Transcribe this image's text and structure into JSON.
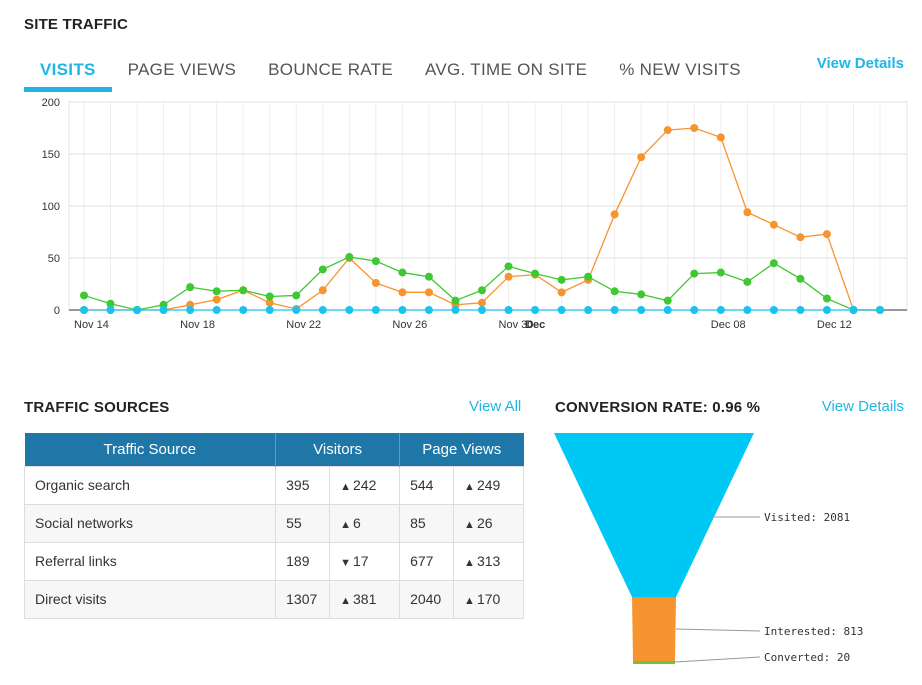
{
  "site_traffic": {
    "title": "SITE TRAFFIC",
    "tabs": [
      "VISITS",
      "PAGE VIEWS",
      "BOUNCE RATE",
      "AVG. TIME ON SITE",
      "% NEW VISITS"
    ],
    "active_tab": 0,
    "view_details": "View Details"
  },
  "chart_data": {
    "type": "line",
    "x": [
      "Nov 14",
      "Nov 15",
      "Nov 16",
      "Nov 17",
      "Nov 18",
      "Nov 19",
      "Nov 20",
      "Nov 21",
      "Nov 22",
      "Nov 23",
      "Nov 24",
      "Nov 25",
      "Nov 26",
      "Nov 27",
      "Nov 28",
      "Nov 29",
      "Nov 30",
      "Dec 1",
      "Dec 2",
      "Dec 3",
      "Dec 4",
      "Dec 5",
      "Dec 6",
      "Dec 7",
      "Dec 8",
      "Dec 9",
      "Dec 10",
      "Dec 11",
      "Dec 12",
      "Dec 13",
      "Dec 14"
    ],
    "tick_labels": [
      "Nov 14",
      "Nov 18",
      "Nov 22",
      "Nov 26",
      "Nov 30",
      "Dec",
      "Dec 08",
      "Dec 12"
    ],
    "ylim": [
      0,
      200
    ],
    "yticks": [
      0,
      50,
      100,
      150,
      200
    ],
    "grid": true,
    "series": [
      {
        "color": "#f7942f",
        "values": [
          0,
          0,
          0,
          0,
          5,
          10,
          19,
          7,
          1,
          19,
          50,
          26,
          17,
          17,
          5,
          7,
          32,
          34,
          17,
          29,
          92,
          147,
          173,
          175,
          166,
          94,
          82,
          70,
          73,
          0,
          0
        ]
      },
      {
        "color": "#3ec832",
        "values": [
          14,
          6,
          0,
          5,
          22,
          18,
          19,
          13,
          14,
          39,
          51,
          47,
          36,
          32,
          9,
          19,
          42,
          35,
          29,
          32,
          18,
          15,
          9,
          35,
          36,
          27,
          45,
          30,
          11,
          0,
          0
        ]
      },
      {
        "color": "#18c3ef",
        "values": [
          0,
          0,
          0,
          0,
          0,
          0,
          0,
          0,
          0,
          0,
          0,
          0,
          0,
          0,
          0,
          0,
          0,
          0,
          0,
          0,
          0,
          0,
          0,
          0,
          0,
          0,
          0,
          0,
          0,
          0,
          0
        ]
      }
    ]
  },
  "traffic_sources": {
    "title": "TRAFFIC SOURCES",
    "view_all": "View All",
    "headers": {
      "source": "Traffic Source",
      "visitors": "Visitors",
      "page_views": "Page Views"
    },
    "rows": [
      {
        "source": "Organic search",
        "visitors": "395",
        "visitors_change": "242",
        "visitors_dir": "up",
        "page_views": "544",
        "page_views_change": "249",
        "page_views_dir": "up"
      },
      {
        "source": "Social networks",
        "visitors": "55",
        "visitors_change": "6",
        "visitors_dir": "up",
        "page_views": "85",
        "page_views_change": "26",
        "page_views_dir": "up"
      },
      {
        "source": "Referral links",
        "visitors": "189",
        "visitors_change": "17",
        "visitors_dir": "down",
        "page_views": "677",
        "page_views_change": "313",
        "page_views_dir": "up"
      },
      {
        "source": "Direct visits",
        "visitors": "1307",
        "visitors_change": "381",
        "visitors_dir": "up",
        "page_views": "2040",
        "page_views_change": "170",
        "page_views_dir": "up"
      }
    ]
  },
  "conversion": {
    "title": "CONVERSION RATE: 0.96 %",
    "view_details": "View Details",
    "stages": [
      {
        "label": "Visited: 2081",
        "value": 2081,
        "color": "#00c8f5"
      },
      {
        "label": "Interested: 813",
        "value": 813,
        "color": "#f7942f"
      },
      {
        "label": "Converted: 20",
        "value": 20,
        "color": "#6ac545"
      }
    ]
  }
}
